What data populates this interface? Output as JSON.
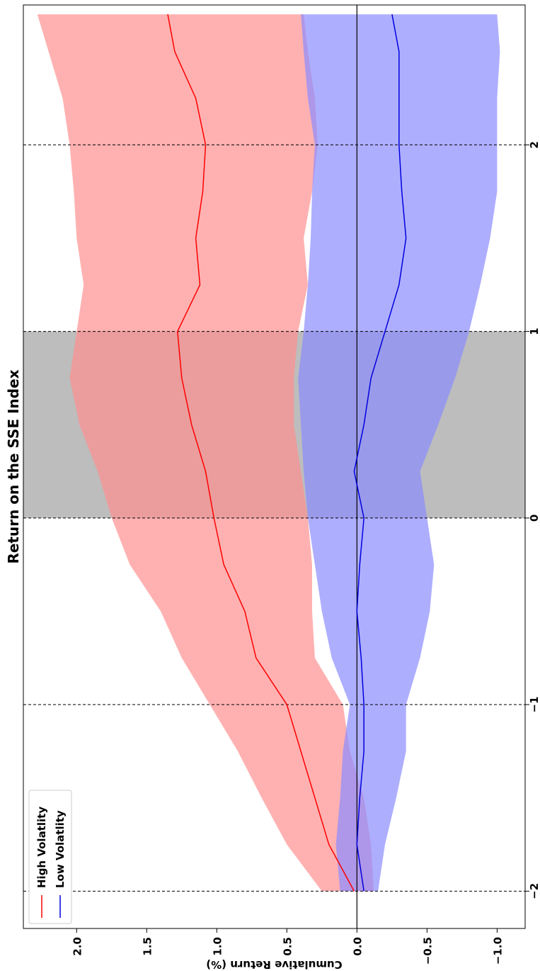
{
  "chart_data": {
    "type": "line",
    "title": "Return on the SSE Index",
    "xlabel": "",
    "ylabel": "Cumulative Return (%)",
    "xlim": [
      -2.2,
      2.75
    ],
    "ylim": [
      -1.2,
      2.38
    ],
    "xticks": [
      -2,
      -1,
      0,
      1,
      2
    ],
    "xtick_labels": [
      "−2",
      "−1",
      "0",
      "1",
      "2"
    ],
    "yticks": [
      -1.0,
      -0.5,
      0.0,
      0.5,
      1.0,
      1.5,
      2.0
    ],
    "ytick_labels": [
      "−1.0",
      "−0.5",
      "0.0",
      "0.5",
      "1.0",
      "1.5",
      "2.0"
    ],
    "vlines": [
      -2,
      -1,
      0,
      1,
      2
    ],
    "hline": 0,
    "shaded_region": [
      0,
      1
    ],
    "legend_position": "top-left",
    "grid": false,
    "x": [
      -2.0,
      -1.75,
      -1.5,
      -1.25,
      -1.0,
      -0.75,
      -0.5,
      -0.25,
      0.0,
      0.25,
      0.5,
      0.75,
      1.0,
      1.25,
      1.5,
      1.75,
      2.0,
      2.25,
      2.5,
      2.7
    ],
    "series": [
      {
        "name": "High Volatlity",
        "color": "#ff0000",
        "band_color": "#ff9090",
        "values": [
          0.02,
          0.2,
          0.3,
          0.4,
          0.5,
          0.72,
          0.8,
          0.95,
          1.02,
          1.08,
          1.18,
          1.25,
          1.28,
          1.12,
          1.15,
          1.1,
          1.08,
          1.15,
          1.3,
          1.35
        ],
        "upper": [
          0.25,
          0.5,
          0.68,
          0.85,
          1.05,
          1.25,
          1.4,
          1.62,
          1.75,
          1.85,
          1.98,
          2.05,
          2.0,
          1.95,
          2.0,
          2.02,
          2.05,
          2.1,
          2.2,
          2.28
        ],
        "lower": [
          -0.12,
          -0.1,
          -0.05,
          0.05,
          0.1,
          0.3,
          0.32,
          0.32,
          0.35,
          0.4,
          0.45,
          0.45,
          0.42,
          0.35,
          0.38,
          0.32,
          0.28,
          0.3,
          0.35,
          0.38
        ]
      },
      {
        "name": "Low Volatlity",
        "color": "#0000dd",
        "band_color": "#8c8cff",
        "values": [
          -0.05,
          0.0,
          -0.02,
          -0.05,
          -0.05,
          -0.03,
          0.0,
          -0.02,
          -0.05,
          0.02,
          -0.05,
          -0.1,
          -0.2,
          -0.3,
          -0.35,
          -0.32,
          -0.3,
          -0.3,
          -0.3,
          -0.25
        ],
        "upper": [
          0.12,
          0.15,
          0.12,
          0.1,
          0.05,
          0.18,
          0.25,
          0.3,
          0.35,
          0.38,
          0.4,
          0.42,
          0.38,
          0.35,
          0.33,
          0.32,
          0.3,
          0.35,
          0.38,
          0.4
        ],
        "lower": [
          -0.15,
          -0.2,
          -0.28,
          -0.35,
          -0.35,
          -0.45,
          -0.52,
          -0.55,
          -0.5,
          -0.45,
          -0.58,
          -0.7,
          -0.8,
          -0.88,
          -0.95,
          -1.0,
          -1.0,
          -1.0,
          -1.02,
          -1.0
        ]
      }
    ]
  }
}
